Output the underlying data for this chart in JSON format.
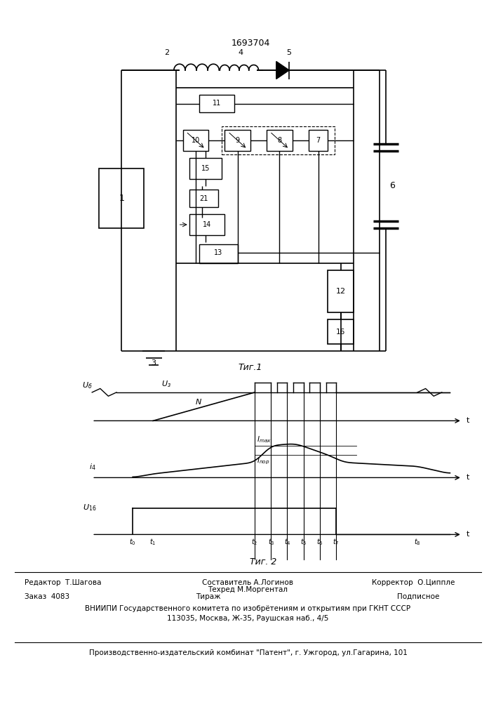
{
  "patent_number": "1693704",
  "fig1_caption": "Τиг.1",
  "fig2_caption": "Τиг. 2",
  "editor_line": "Редактор  Т.Шагова",
  "composer_line": "Составитель А.Логинов",
  "techred_line": "Техред М.Моргентал",
  "corrector_line": "Корректор  О.Циппле",
  "order_line": "Заказ  4083",
  "tirazh_line": "Тираж",
  "podpisnoe_line": "Подписное",
  "vniipii_line": "ВНИИПИ Государственного комитета по изобрётениям и открытиям при ГКНТ СССР",
  "address_line": "113035, Москва, Ж-35, Раушская наб., 4/5",
  "factory_line": "Производственно-издательский комбинат \"Патент\", г. Ужгород, ул.Гагарина, 101",
  "bg_color": "#ffffff"
}
